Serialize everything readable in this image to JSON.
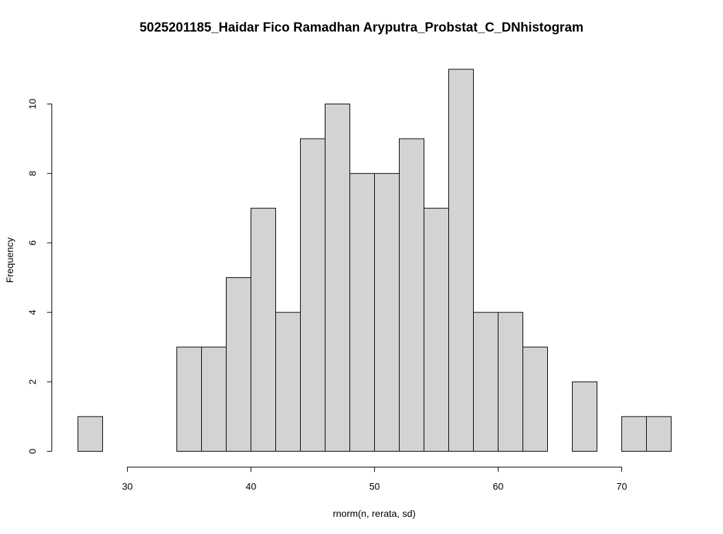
{
  "chart_data": {
    "type": "bar",
    "title": "5025201185_Haidar Fico Ramadhan Aryputra_Probstat_C_DNhistogram",
    "xlabel": "rnorm(n, rerata, sd)",
    "ylabel": "Frequency",
    "bin_edges": [
      26,
      28,
      30,
      32,
      34,
      36,
      38,
      40,
      42,
      44,
      46,
      48,
      50,
      52,
      54,
      56,
      58,
      60,
      62,
      64,
      66,
      68,
      70,
      72,
      74
    ],
    "counts": [
      1,
      0,
      0,
      0,
      3,
      3,
      5,
      7,
      4,
      9,
      10,
      8,
      8,
      9,
      7,
      11,
      4,
      4,
      3,
      0,
      2,
      0,
      1,
      1
    ],
    "x_ticks": [
      30,
      40,
      50,
      60,
      70
    ],
    "y_ticks": [
      0,
      2,
      4,
      6,
      8,
      10
    ],
    "xlim": [
      26,
      74
    ],
    "ylim": [
      0,
      11
    ],
    "bar_fill": "#d3d3d3",
    "bar_stroke": "#000000",
    "grid": false
  }
}
